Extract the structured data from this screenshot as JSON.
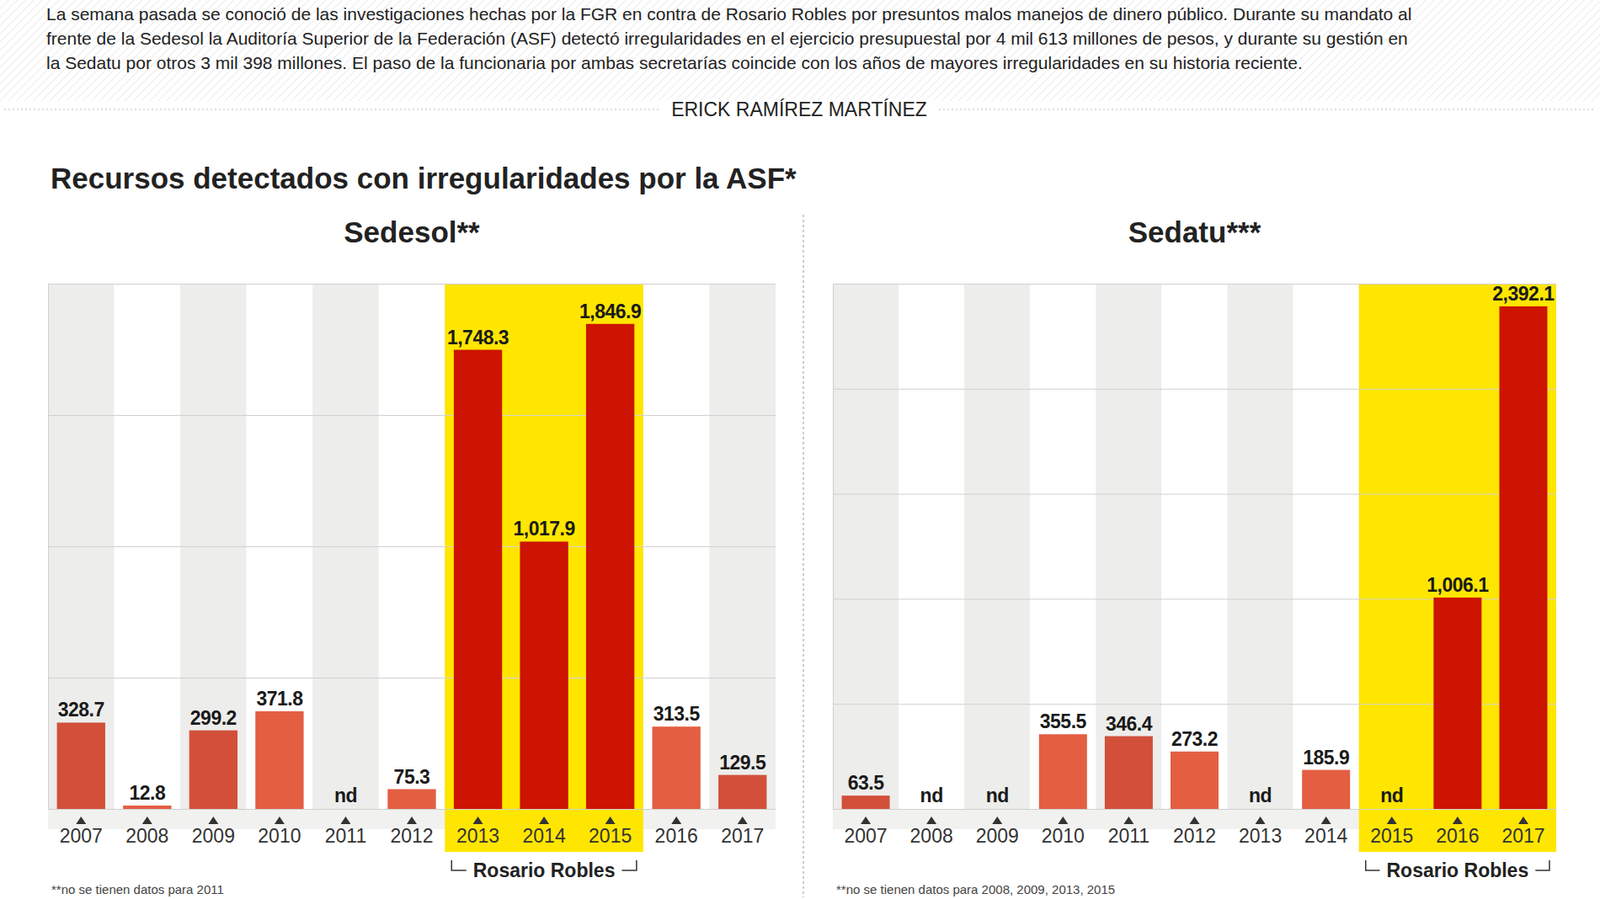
{
  "header": {
    "intro": [
      "La semana pasada se conoció de las investigaciones hechas por la FGR en contra de Rosario Robles por presuntos malos manejos de dinero público. Durante su mandato al",
      "frente de la Sedesol la Auditoría Superior de la Federación (ASF) detectó irregularidades en el ejercicio presupuestal por 4 mil 613 millones de pesos, y durante su gestión en",
      "la Sedatu por otros 3 mil 398 millones. El paso de la funcionaria por ambas secretarías coincide con los años de mayores irregularidades en su historia reciente."
    ],
    "author": "ERICK RAMÍREZ MARTÍNEZ",
    "title": "Recursos detectados con irregularidades por la ASF*"
  },
  "chart_data": [
    {
      "type": "bar",
      "title": "Sedesol**",
      "categories": [
        "2007",
        "2008",
        "2009",
        "2010",
        "2011",
        "2012",
        "2013",
        "2014",
        "2015",
        "2016",
        "2017"
      ],
      "values": [
        328.7,
        12.8,
        299.2,
        371.8,
        null,
        75.3,
        1748.3,
        1017.9,
        1846.9,
        313.5,
        129.5
      ],
      "value_labels": [
        "328.7",
        "12.8",
        "299.2",
        "371.8",
        "nd",
        "75.3",
        "1,748.3",
        "1,017.9",
        "1,846.9",
        "313.5",
        "129.5"
      ],
      "colors": [
        "#d2503a",
        "#e45e42",
        "#d2503a",
        "#e45e42",
        "#d2503a",
        "#e45e42",
        "#cc1400",
        "#cc1400",
        "#cc1400",
        "#e45e42",
        "#d2503a"
      ],
      "ylim": [
        0,
        2000
      ],
      "yticks": [
        0,
        500,
        1000,
        1500,
        2000
      ],
      "grid": true,
      "tick_labels": "x",
      "data_labels": true,
      "annotations": [
        {
          "text": "Rosario Robles",
          "from": "2013",
          "to": "2015"
        }
      ],
      "footnote": "**no se tienen datos para 2011"
    },
    {
      "type": "bar",
      "title": "Sedatu***",
      "categories": [
        "2007",
        "2008",
        "2009",
        "2010",
        "2011",
        "2012",
        "2013",
        "2014",
        "2015",
        "2016",
        "2017"
      ],
      "values": [
        63.5,
        null,
        null,
        355.5,
        346.4,
        273.2,
        null,
        185.9,
        null,
        1006.1,
        2392.1
      ],
      "value_labels": [
        "63.5",
        "nd",
        "nd",
        "355.5",
        "346.4",
        "273.2",
        "nd",
        "185.9",
        "nd",
        "1,006.1",
        "2,392.1"
      ],
      "colors": [
        "#d2503a",
        "#e45e42",
        "#d2503a",
        "#e45e42",
        "#d2503a",
        "#e45e42",
        "#d2503a",
        "#e45e42",
        "#cc1400",
        "#cc1400",
        "#cc1400"
      ],
      "ylim": [
        0,
        2500
      ],
      "yticks": [
        0,
        500,
        1000,
        1500,
        2000,
        2500
      ],
      "grid": true,
      "tick_labels": "x",
      "data_labels": true,
      "annotations": [
        {
          "text": "Rosario Robles",
          "from": "2015",
          "to": "2017"
        }
      ],
      "footnote": "**no se tienen datos para 2008, 2009, 2013, 2015"
    }
  ]
}
